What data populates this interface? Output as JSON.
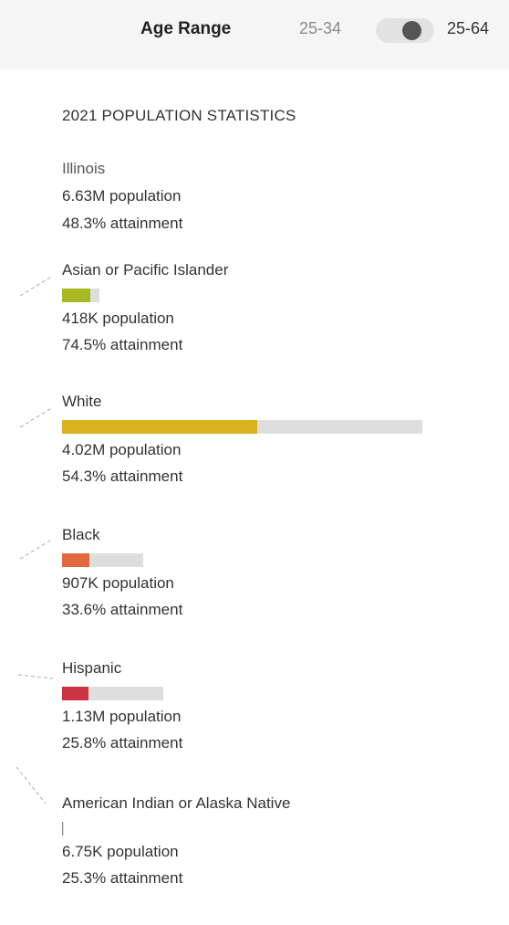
{
  "header": {
    "age_range_label": "Age Range",
    "range_left": "25-34",
    "range_right": "25-64",
    "toggle_state": "right"
  },
  "stats": {
    "title": "2021 POPULATION STATISTICS",
    "state": {
      "name": "Illinois",
      "population": "6.63M population",
      "attainment": "48.3% attainment"
    },
    "groups": [
      {
        "name": "Asian or Pacific Islander",
        "population": "418K population",
        "attainment": "74.5% attainment",
        "population_share": 0.105,
        "attainment_fraction": 0.745,
        "color": "#a8b820"
      },
      {
        "name": "White",
        "population": "4.02M population",
        "attainment": "54.3% attainment",
        "population_share": 1.0,
        "attainment_fraction": 0.543,
        "color": "#d9b21f"
      },
      {
        "name": "Black",
        "population": "907K population",
        "attainment": "33.6% attainment",
        "population_share": 0.225,
        "attainment_fraction": 0.336,
        "color": "#e2683d"
      },
      {
        "name": "Hispanic",
        "population": "1.13M population",
        "attainment": "25.8% attainment",
        "population_share": 0.281,
        "attainment_fraction": 0.258,
        "color": "#cc3340"
      },
      {
        "name": "American Indian or Alaska Native",
        "population": "6.75K population",
        "attainment": "25.3% attainment",
        "population_share": 0.0017,
        "attainment_fraction": 0.253,
        "color": "#8c8c8c"
      }
    ]
  }
}
